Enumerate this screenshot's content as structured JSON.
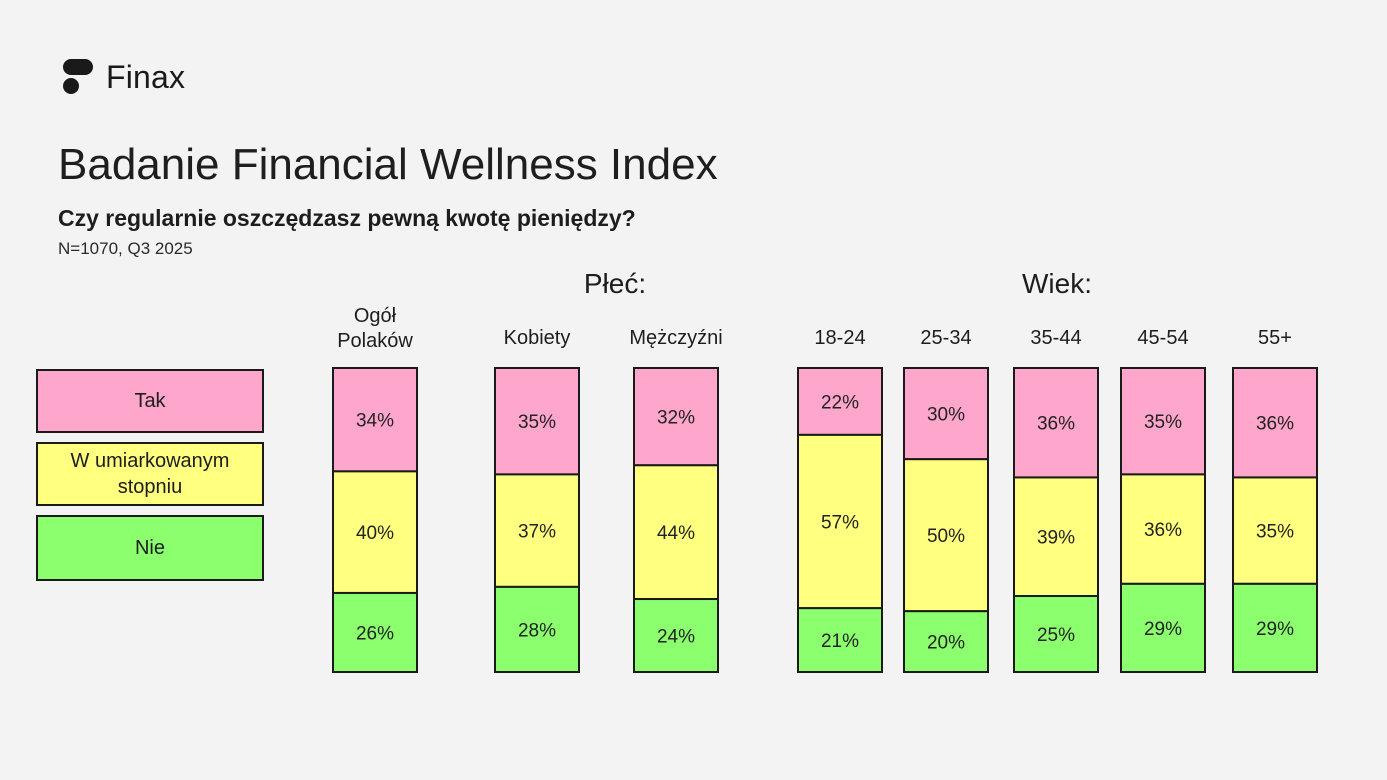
{
  "brand": {
    "name": "Finax"
  },
  "header": {
    "title": "Badanie Financial Wellness Index",
    "question": "Czy regularnie oszczędzasz pewną kwotę pieniędzy?",
    "sample": "N=1070, Q3 2025"
  },
  "groups": {
    "gender": "Płeć:",
    "age": "Wiek:"
  },
  "legend": [
    {
      "label": "Tak",
      "color": "#ffa6cc"
    },
    {
      "label": "W umiarkowanym stopniu",
      "color": "#ffff80"
    },
    {
      "label": "Nie",
      "color": "#8bff6e"
    }
  ],
  "chart_data": {
    "type": "bar",
    "stacked": true,
    "categories": [
      [
        "Ogół",
        "Polaków"
      ],
      [
        "Kobiety"
      ],
      [
        "Mężczyźni"
      ],
      [
        "18-24"
      ],
      [
        "25-34"
      ],
      [
        "35-44"
      ],
      [
        "45-54"
      ],
      [
        "55+"
      ]
    ],
    "series": [
      {
        "name": "Tak",
        "color": "#ffa6cc",
        "values": [
          34,
          35,
          32,
          22,
          30,
          36,
          35,
          36
        ]
      },
      {
        "name": "W umiarkowanym stopniu",
        "color": "#ffff80",
        "values": [
          40,
          37,
          44,
          57,
          50,
          39,
          36,
          35
        ]
      },
      {
        "name": "Nie",
        "color": "#8bff6e",
        "values": [
          26,
          28,
          24,
          21,
          20,
          25,
          29,
          29
        ]
      }
    ],
    "value_suffix": "%"
  }
}
